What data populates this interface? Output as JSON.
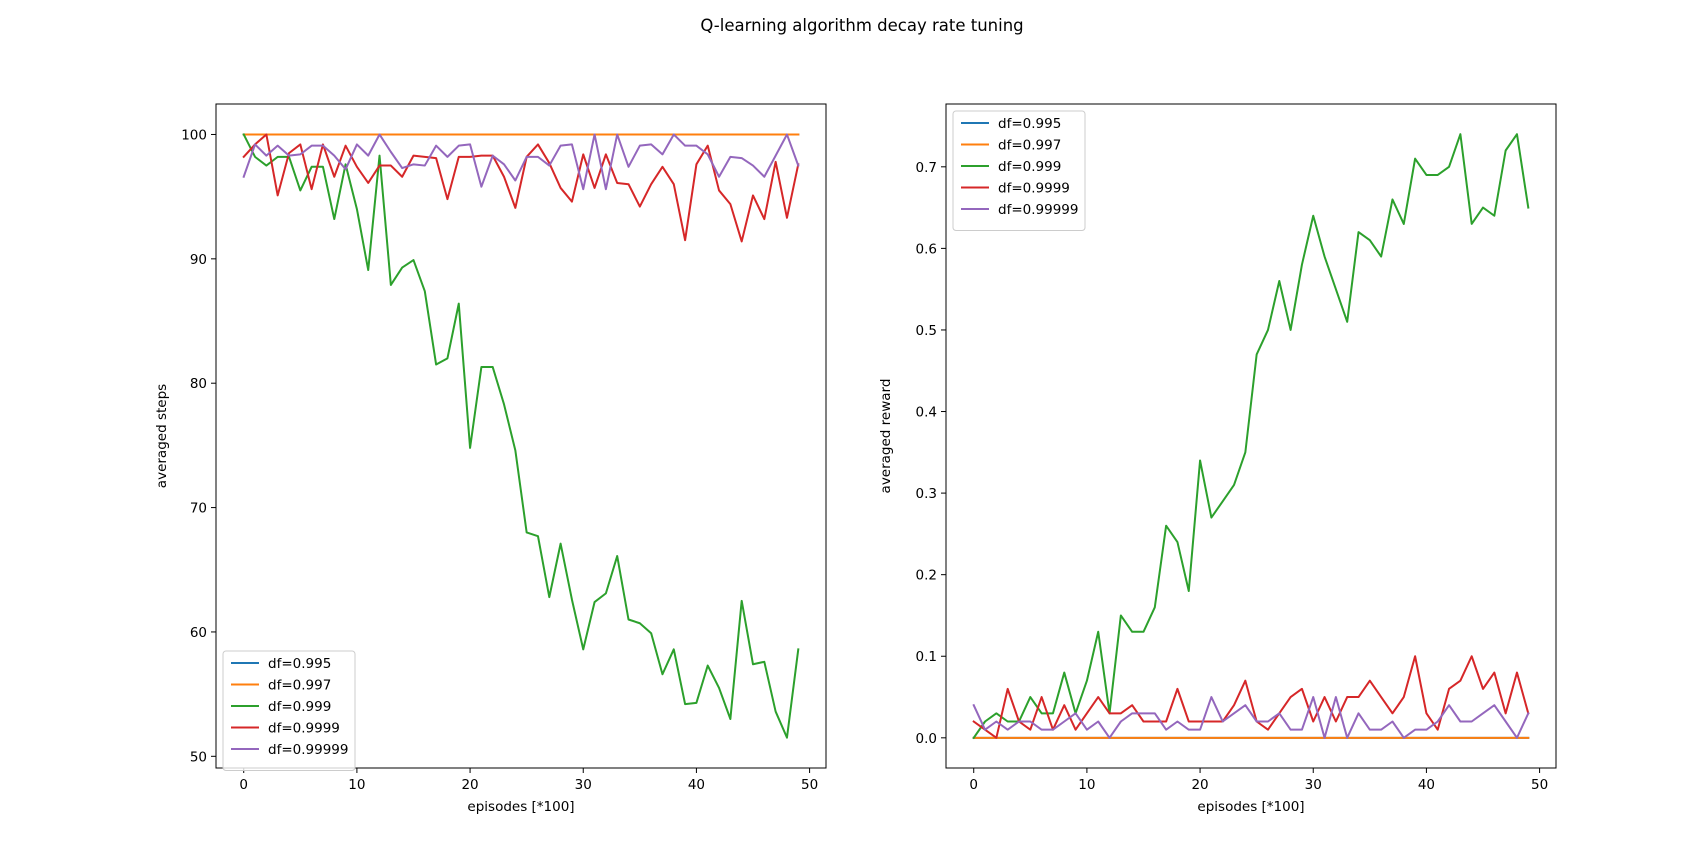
{
  "figure": {
    "suptitle": "Q-learning algorithm decay rate tuning"
  },
  "colors": {
    "df=0.995": "#1f77b4",
    "df=0.997": "#ff7f0e",
    "df=0.999": "#2ca02c",
    "df=0.9999": "#d62728",
    "df=0.99999": "#9467bd"
  },
  "chart_data": [
    {
      "type": "line",
      "xlabel": "episodes [*100]",
      "ylabel": "averaged steps",
      "xlim": [
        -2.45,
        51.45
      ],
      "ylim": [
        49.06,
        102.45
      ],
      "xticks": [
        0,
        10,
        20,
        30,
        40,
        50
      ],
      "yticks": [
        50,
        60,
        70,
        80,
        90,
        100
      ],
      "grid": false,
      "legend_position": "lower-left",
      "x": [
        0,
        1,
        2,
        3,
        4,
        5,
        6,
        7,
        8,
        9,
        10,
        11,
        12,
        13,
        14,
        15,
        16,
        17,
        18,
        19,
        20,
        21,
        22,
        23,
        24,
        25,
        26,
        27,
        28,
        29,
        30,
        31,
        32,
        33,
        34,
        35,
        36,
        37,
        38,
        39,
        40,
        41,
        42,
        43,
        44,
        45,
        46,
        47,
        48,
        49
      ],
      "series": [
        {
          "name": "df=0.995",
          "values": [
            100,
            100,
            100,
            100,
            100,
            100,
            100,
            100,
            100,
            100,
            100,
            100,
            100,
            100,
            100,
            100,
            100,
            100,
            100,
            100,
            100,
            100,
            100,
            100,
            100,
            100,
            100,
            100,
            100,
            100,
            100,
            100,
            100,
            100,
            100,
            100,
            100,
            100,
            100,
            100,
            100,
            100,
            100,
            100,
            100,
            100,
            100,
            100,
            100,
            100
          ]
        },
        {
          "name": "df=0.997",
          "values": [
            100,
            100,
            100,
            100,
            100,
            100,
            100,
            100,
            100,
            100,
            100,
            100,
            100,
            100,
            100,
            100,
            100,
            100,
            100,
            100,
            100,
            100,
            100,
            100,
            100,
            100,
            100,
            100,
            100,
            100,
            100,
            100,
            100,
            100,
            100,
            100,
            100,
            100,
            100,
            100,
            100,
            100,
            100,
            100,
            100,
            100,
            100,
            100,
            100,
            100
          ]
        },
        {
          "name": "df=0.999",
          "values": [
            100,
            98.2,
            97.5,
            98.2,
            98.2,
            95.5,
            97.4,
            97.4,
            93.2,
            97.6,
            94.0,
            89.1,
            98.3,
            87.9,
            89.3,
            89.9,
            87.4,
            81.5,
            82.0,
            86.4,
            74.8,
            81.3,
            81.3,
            78.3,
            74.6,
            68.0,
            67.7,
            62.8,
            67.1,
            62.6,
            58.6,
            62.4,
            63.1,
            66.1,
            61.0,
            60.7,
            59.9,
            56.6,
            58.6,
            54.2,
            54.3,
            57.3,
            55.5,
            53.0,
            62.5,
            57.4,
            57.6,
            53.6,
            51.5,
            58.6
          ]
        },
        {
          "name": "df=0.9999",
          "values": [
            98.2,
            99.2,
            100,
            95.1,
            98.5,
            99.2,
            95.6,
            99.2,
            96.6,
            99.1,
            97.4,
            96.1,
            97.5,
            97.5,
            96.6,
            98.3,
            98.2,
            98.1,
            94.8,
            98.2,
            98.2,
            98.3,
            98.3,
            96.6,
            94.1,
            98.2,
            99.2,
            97.7,
            95.7,
            94.6,
            98.4,
            95.7,
            98.4,
            96.1,
            96.0,
            94.2,
            96.0,
            97.4,
            96.0,
            91.5,
            97.6,
            99.1,
            95.5,
            94.4,
            91.4,
            95.1,
            93.2,
            97.8,
            93.3,
            97.6
          ]
        },
        {
          "name": "df=0.99999",
          "values": [
            96.6,
            99.2,
            98.3,
            99.1,
            98.3,
            98.4,
            99.1,
            99.1,
            98.3,
            97.2,
            99.2,
            98.3,
            100,
            98.6,
            97.3,
            97.6,
            97.5,
            99.1,
            98.2,
            99.1,
            99.2,
            95.8,
            98.3,
            97.6,
            96.3,
            98.2,
            98.2,
            97.5,
            99.1,
            99.2,
            95.6,
            100,
            95.6,
            100,
            97.4,
            99.1,
            99.2,
            98.4,
            100,
            99.1,
            99.1,
            98.4,
            96.6,
            98.2,
            98.1,
            97.5,
            96.6,
            98.3,
            100,
            97.5
          ]
        }
      ]
    },
    {
      "type": "line",
      "xlabel": "episodes [*100]",
      "ylabel": "averaged reward",
      "xlim": [
        -2.45,
        51.45
      ],
      "ylim": [
        -0.037,
        0.777
      ],
      "xticks": [
        0,
        10,
        20,
        30,
        40,
        50
      ],
      "yticks": [
        0.0,
        0.1,
        0.2,
        0.3,
        0.4,
        0.5,
        0.6,
        0.7
      ],
      "ytick_labels": [
        "0.0",
        "0.1",
        "0.2",
        "0.3",
        "0.4",
        "0.5",
        "0.6",
        "0.7"
      ],
      "grid": false,
      "legend_position": "upper-left",
      "x": [
        0,
        1,
        2,
        3,
        4,
        5,
        6,
        7,
        8,
        9,
        10,
        11,
        12,
        13,
        14,
        15,
        16,
        17,
        18,
        19,
        20,
        21,
        22,
        23,
        24,
        25,
        26,
        27,
        28,
        29,
        30,
        31,
        32,
        33,
        34,
        35,
        36,
        37,
        38,
        39,
        40,
        41,
        42,
        43,
        44,
        45,
        46,
        47,
        48,
        49
      ],
      "series": [
        {
          "name": "df=0.995",
          "values": [
            0,
            0,
            0,
            0,
            0,
            0,
            0,
            0,
            0,
            0,
            0,
            0,
            0,
            0,
            0,
            0,
            0,
            0,
            0,
            0,
            0,
            0,
            0,
            0,
            0,
            0,
            0,
            0,
            0,
            0,
            0,
            0,
            0,
            0,
            0,
            0,
            0,
            0,
            0,
            0,
            0,
            0,
            0,
            0,
            0,
            0,
            0,
            0,
            0,
            0
          ]
        },
        {
          "name": "df=0.997",
          "values": [
            0,
            0,
            0,
            0,
            0,
            0,
            0,
            0,
            0,
            0,
            0,
            0,
            0,
            0,
            0,
            0,
            0,
            0,
            0,
            0,
            0,
            0,
            0,
            0,
            0,
            0,
            0,
            0,
            0,
            0,
            0,
            0,
            0,
            0,
            0,
            0,
            0,
            0,
            0,
            0,
            0,
            0,
            0,
            0,
            0,
            0,
            0,
            0,
            0,
            0
          ]
        },
        {
          "name": "df=0.999",
          "values": [
            0.0,
            0.02,
            0.03,
            0.02,
            0.02,
            0.05,
            0.03,
            0.03,
            0.08,
            0.03,
            0.07,
            0.13,
            0.03,
            0.15,
            0.13,
            0.13,
            0.16,
            0.26,
            0.24,
            0.18,
            0.34,
            0.27,
            0.29,
            0.31,
            0.35,
            0.47,
            0.5,
            0.56,
            0.5,
            0.58,
            0.64,
            0.59,
            0.55,
            0.51,
            0.62,
            0.61,
            0.59,
            0.66,
            0.63,
            0.71,
            0.69,
            0.69,
            0.7,
            0.74,
            0.63,
            0.65,
            0.64,
            0.72,
            0.74,
            0.65
          ]
        },
        {
          "name": "df=0.9999",
          "values": [
            0.02,
            0.01,
            0.0,
            0.06,
            0.02,
            0.01,
            0.05,
            0.01,
            0.04,
            0.01,
            0.03,
            0.05,
            0.03,
            0.03,
            0.04,
            0.02,
            0.02,
            0.02,
            0.06,
            0.02,
            0.02,
            0.02,
            0.02,
            0.04,
            0.07,
            0.02,
            0.01,
            0.03,
            0.05,
            0.06,
            0.02,
            0.05,
            0.02,
            0.05,
            0.05,
            0.07,
            0.05,
            0.03,
            0.05,
            0.1,
            0.03,
            0.01,
            0.06,
            0.07,
            0.1,
            0.06,
            0.08,
            0.03,
            0.08,
            0.03
          ]
        },
        {
          "name": "df=0.99999",
          "values": [
            0.04,
            0.01,
            0.02,
            0.01,
            0.02,
            0.02,
            0.01,
            0.01,
            0.02,
            0.03,
            0.01,
            0.02,
            0.0,
            0.02,
            0.03,
            0.03,
            0.03,
            0.01,
            0.02,
            0.01,
            0.01,
            0.05,
            0.02,
            0.03,
            0.04,
            0.02,
            0.02,
            0.03,
            0.01,
            0.01,
            0.05,
            0.0,
            0.05,
            0.0,
            0.03,
            0.01,
            0.01,
            0.02,
            0.0,
            0.01,
            0.01,
            0.02,
            0.04,
            0.02,
            0.02,
            0.03,
            0.04,
            0.02,
            0.0,
            0.03
          ]
        }
      ]
    }
  ]
}
